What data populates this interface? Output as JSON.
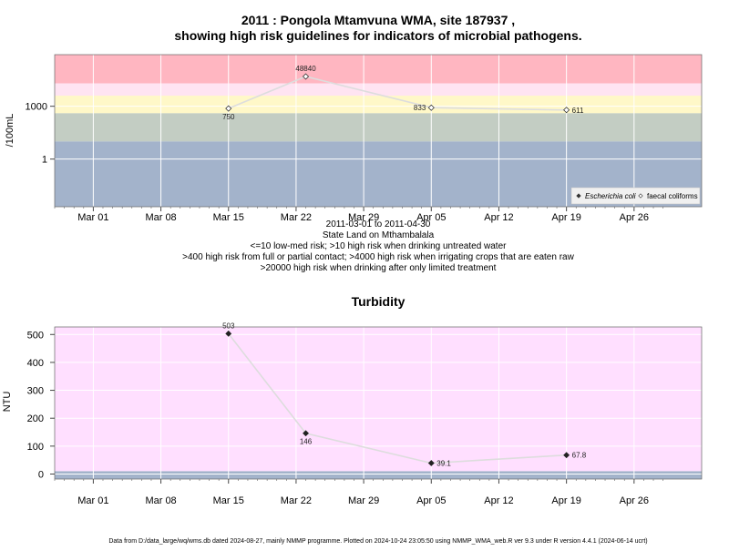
{
  "page": {
    "title_line1": "2011 : Pongola Mtamvuna WMA, site 187937 ,",
    "title_line2": "showing high risk guidelines for indicators of microbial pathogens.",
    "caption_lines": [
      "2011-03-01 to 2011-04-30",
      "State Land on Mthambalala",
      "<=10 low-med risk; >10 high risk when drinking untreated water",
      ">400 high risk from full or partial contact; >4000 high risk when irrigating crops that are eaten raw",
      ">20000 high risk when drinking after only limited treatment"
    ],
    "footer": "Data from D:/data_large/wq/wms.db dated 2024-08-27, mainly NMMP programme. Plotted on 2024-10-24 23:05:50 using NMMP_WMA_web.R ver 9.3 under R version 4.4.1 (2024-06-14 ucrt)"
  },
  "colors": {
    "band_red": "#ffb6c1",
    "band_pink": "#ffe4f2",
    "band_yellow": "#fff8c8",
    "band_gray": "#c3cdc3",
    "band_blue": "#a3b3cb",
    "band_turbidity": "#ffdfff",
    "band_turbidity_low": "#a3b3cb",
    "grid": "#ffffff",
    "line": "#dddddd"
  },
  "chart_data": [
    {
      "type": "line",
      "title": "",
      "ylabel": "/100mL",
      "yscale": "log",
      "x_ticks": [
        "Mar 01",
        "Mar 08",
        "Mar 15",
        "Mar 22",
        "Mar 29",
        "Apr 05",
        "Apr 12",
        "Apr 19",
        "Apr 26"
      ],
      "y_ticks": [
        "1",
        "1000"
      ],
      "series": [
        {
          "name": "Escherichia coli",
          "marker": "filled-diamond",
          "points": []
        },
        {
          "name": "faecal coliforms",
          "marker": "open-diamond",
          "points": [
            {
              "x": "2011-03-15",
              "y": 750,
              "label": "750",
              "label_pos": "below"
            },
            {
              "x": "2011-03-23",
              "y": 48840,
              "label": "48840",
              "label_pos": "above"
            },
            {
              "x": "2011-04-05",
              "y": 833,
              "label": "833",
              "label_pos": "left"
            },
            {
              "x": "2011-04-19",
              "y": 611,
              "label": "611",
              "label_pos": "right"
            }
          ]
        }
      ],
      "legend_position": "bottom-right",
      "risk_bands_upper_bounds": [
        10,
        400,
        4000,
        20000
      ]
    },
    {
      "type": "line",
      "title": "Turbidity",
      "ylabel": "NTU",
      "yscale": "linear",
      "ylim": [
        -18,
        527
      ],
      "x_ticks": [
        "Mar 01",
        "Mar 08",
        "Mar 15",
        "Mar 22",
        "Mar 29",
        "Apr 05",
        "Apr 12",
        "Apr 19",
        "Apr 26"
      ],
      "y_ticks": [
        "0",
        "100",
        "200",
        "300",
        "400",
        "500"
      ],
      "series": [
        {
          "name": "Turbidity",
          "marker": "filled-diamond",
          "points": [
            {
              "x": "2011-03-15",
              "y": 503,
              "label": "503",
              "label_pos": "above"
            },
            {
              "x": "2011-03-23",
              "y": 146,
              "label": "146",
              "label_pos": "below"
            },
            {
              "x": "2011-04-05",
              "y": 39.1,
              "label": "39.1",
              "label_pos": "right"
            },
            {
              "x": "2011-04-19",
              "y": 67.8,
              "label": "67.8",
              "label_pos": "right"
            }
          ]
        }
      ]
    }
  ]
}
